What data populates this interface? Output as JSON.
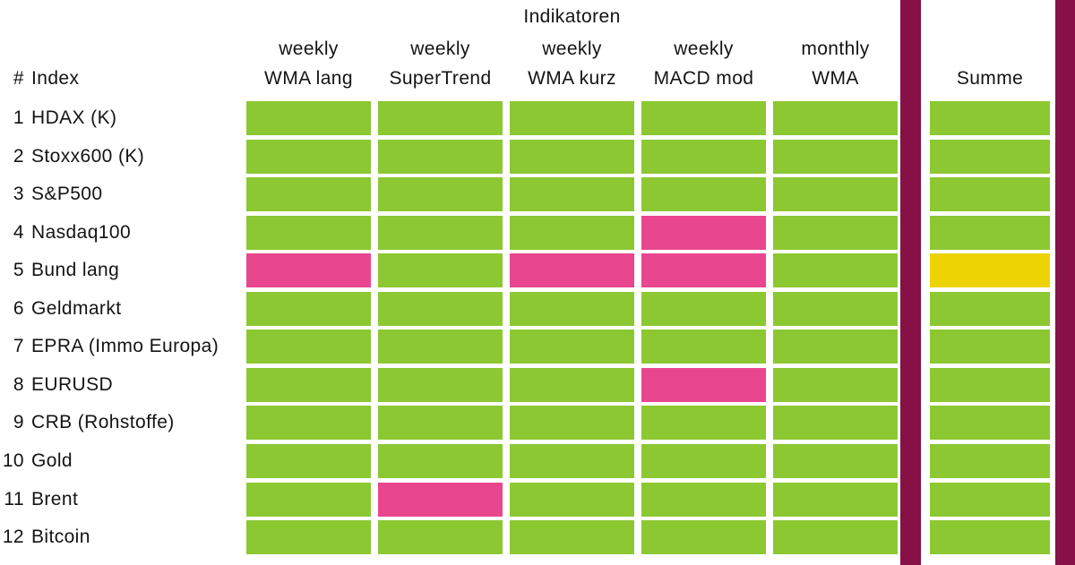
{
  "title": "Indikatoren",
  "header": {
    "number_symbol": "#",
    "index_label": "Index",
    "columns": [
      {
        "period": "weekly",
        "name": "WMA lang"
      },
      {
        "period": "weekly",
        "name": "SuperTrend"
      },
      {
        "period": "weekly",
        "name": "WMA kurz"
      },
      {
        "period": "weekly",
        "name": "MACD mod"
      },
      {
        "period": "monthly",
        "name": "WMA"
      }
    ],
    "summary_label": "Summe"
  },
  "colors": {
    "green": "#8CC832",
    "pink": "#E94690",
    "yellow": "#EDD304",
    "maroon": "#871047"
  },
  "chart_data": {
    "type": "heatmap",
    "title": "Indikatoren",
    "columns": [
      "weekly WMA lang",
      "weekly SuperTrend",
      "weekly WMA kurz",
      "weekly MACD mod",
      "monthly WMA",
      "Summe"
    ],
    "row_numbers": [
      "1",
      "2",
      "3",
      "4",
      "5",
      "6",
      "7",
      "8",
      "9",
      "10",
      "11",
      "12"
    ],
    "rows": [
      "HDAX (K)",
      "Stoxx600 (K)",
      "S&P500",
      "Nasdaq100",
      "Bund lang",
      "Geldmarkt",
      "EPRA (Immo Europa)",
      "EURUSD",
      "CRB (Rohstoffe)",
      "Gold",
      "Brent",
      "Bitcoin"
    ],
    "values": [
      [
        "green",
        "green",
        "green",
        "green",
        "green",
        "green"
      ],
      [
        "green",
        "green",
        "green",
        "green",
        "green",
        "green"
      ],
      [
        "green",
        "green",
        "green",
        "green",
        "green",
        "green"
      ],
      [
        "green",
        "green",
        "green",
        "pink",
        "green",
        "green"
      ],
      [
        "pink",
        "green",
        "pink",
        "pink",
        "green",
        "yellow"
      ],
      [
        "green",
        "green",
        "green",
        "green",
        "green",
        "green"
      ],
      [
        "green",
        "green",
        "green",
        "green",
        "green",
        "green"
      ],
      [
        "green",
        "green",
        "green",
        "pink",
        "green",
        "green"
      ],
      [
        "green",
        "green",
        "green",
        "green",
        "green",
        "green"
      ],
      [
        "green",
        "green",
        "green",
        "green",
        "green",
        "green"
      ],
      [
        "green",
        "pink",
        "green",
        "green",
        "green",
        "green"
      ],
      [
        "green",
        "green",
        "green",
        "green",
        "green",
        "green"
      ]
    ],
    "color_map": {
      "green": "#8CC832",
      "pink": "#E94690",
      "yellow": "#EDD304"
    },
    "layout": {
      "grid": "off",
      "legend": "none",
      "divider_color": "#871047"
    }
  }
}
